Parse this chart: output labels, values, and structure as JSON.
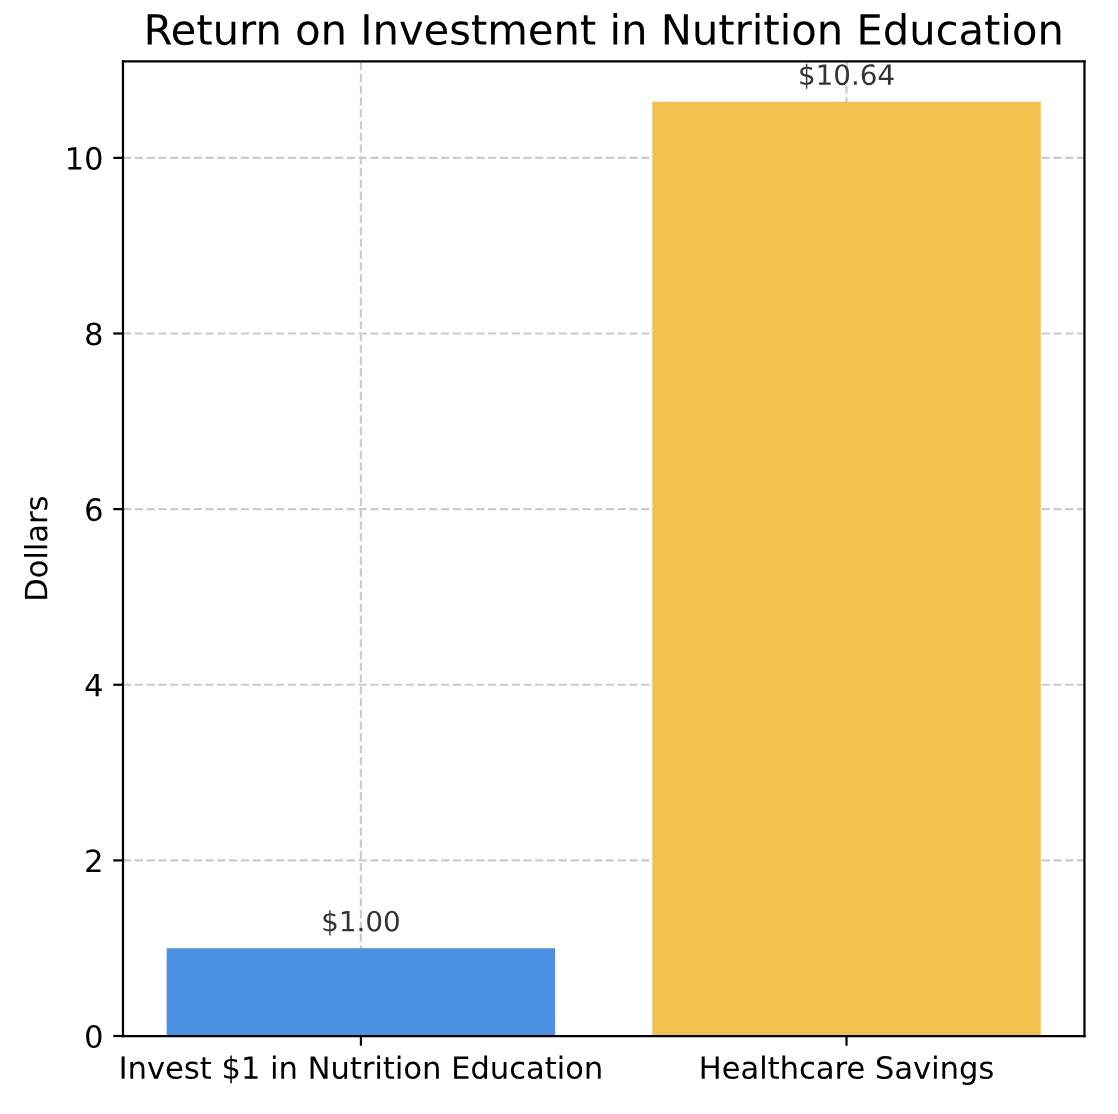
{
  "chart_data": {
    "type": "bar",
    "title": "Return on Investment in Nutrition Education",
    "ylabel": "Dollars",
    "categories": [
      "Invest $1 in Nutrition Education",
      "Healthcare Savings"
    ],
    "values": [
      1.0,
      10.64
    ],
    "colors": [
      "#4a90e2",
      "#f2c14e"
    ],
    "value_labels": [
      "$1.00",
      "$10.64"
    ],
    "ylim": [
      0,
      11.1
    ],
    "yticks": [
      0,
      2,
      4,
      6,
      8,
      10
    ],
    "grid": true
  }
}
